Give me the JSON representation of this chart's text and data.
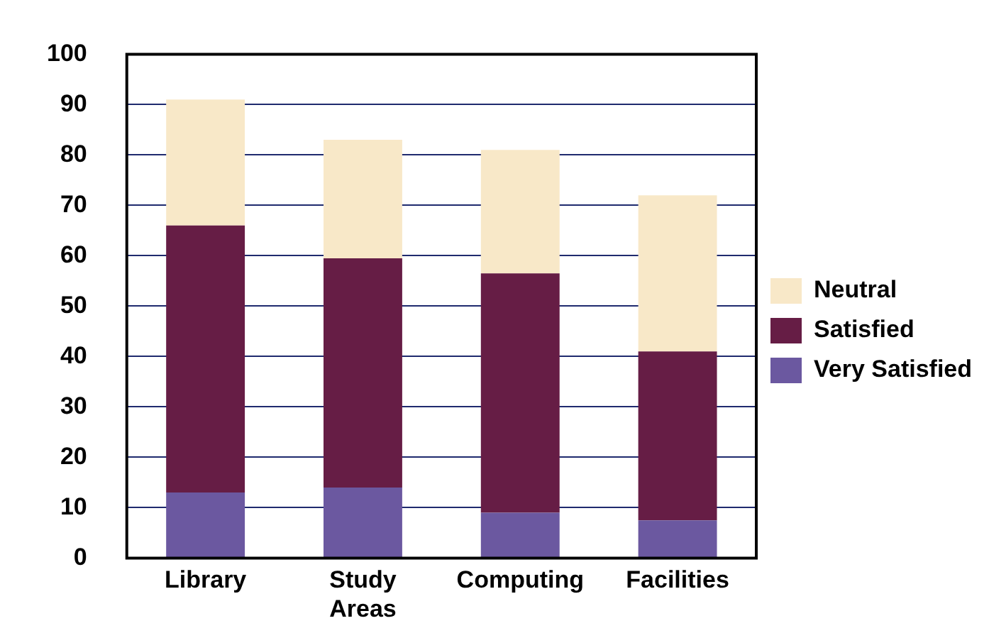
{
  "chart_data": {
    "type": "bar",
    "stacked": true,
    "categories": [
      "Library",
      "Study Areas",
      "Computing",
      "Facilities"
    ],
    "series": [
      {
        "name": "Very Satisfied",
        "color": "#6b58a0",
        "values": [
          13,
          14,
          9,
          7.5
        ]
      },
      {
        "name": "Satisfied",
        "color": "#661d45",
        "values": [
          53,
          45.5,
          47.5,
          33.5
        ]
      },
      {
        "name": "Neutral",
        "color": "#f8e8c8",
        "values": [
          25,
          23.5,
          24.5,
          31
        ]
      }
    ],
    "ylim": [
      0,
      100
    ],
    "yticks": [
      0,
      10,
      20,
      30,
      40,
      50,
      60,
      70,
      80,
      90,
      100
    ],
    "grid": "y",
    "legend": "right"
  }
}
